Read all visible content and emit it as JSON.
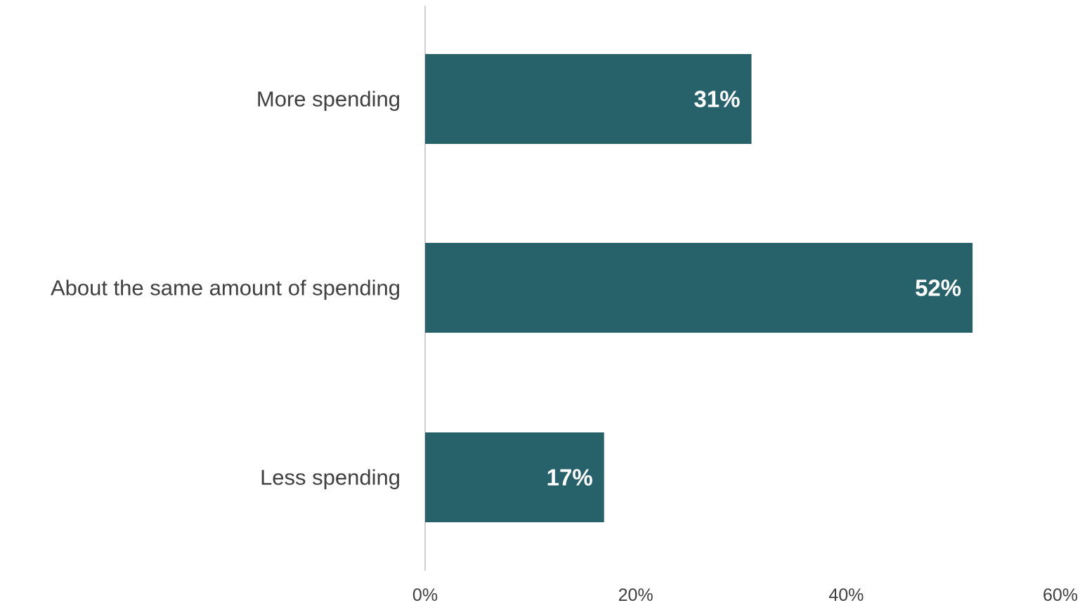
{
  "chart_data": {
    "type": "bar",
    "orientation": "horizontal",
    "categories": [
      "More spending",
      "About the same amount of spending",
      "Less spending"
    ],
    "values": [
      31,
      52,
      17
    ],
    "data_labels": [
      "31%",
      "52%",
      "17%"
    ],
    "xlim": [
      0,
      60
    ],
    "x_ticks": [
      0,
      20,
      40,
      60
    ],
    "x_tick_labels": [
      "0%",
      "20%",
      "40%",
      "60%"
    ],
    "bar_color": "#27626A",
    "grid": false,
    "legend": "none"
  }
}
